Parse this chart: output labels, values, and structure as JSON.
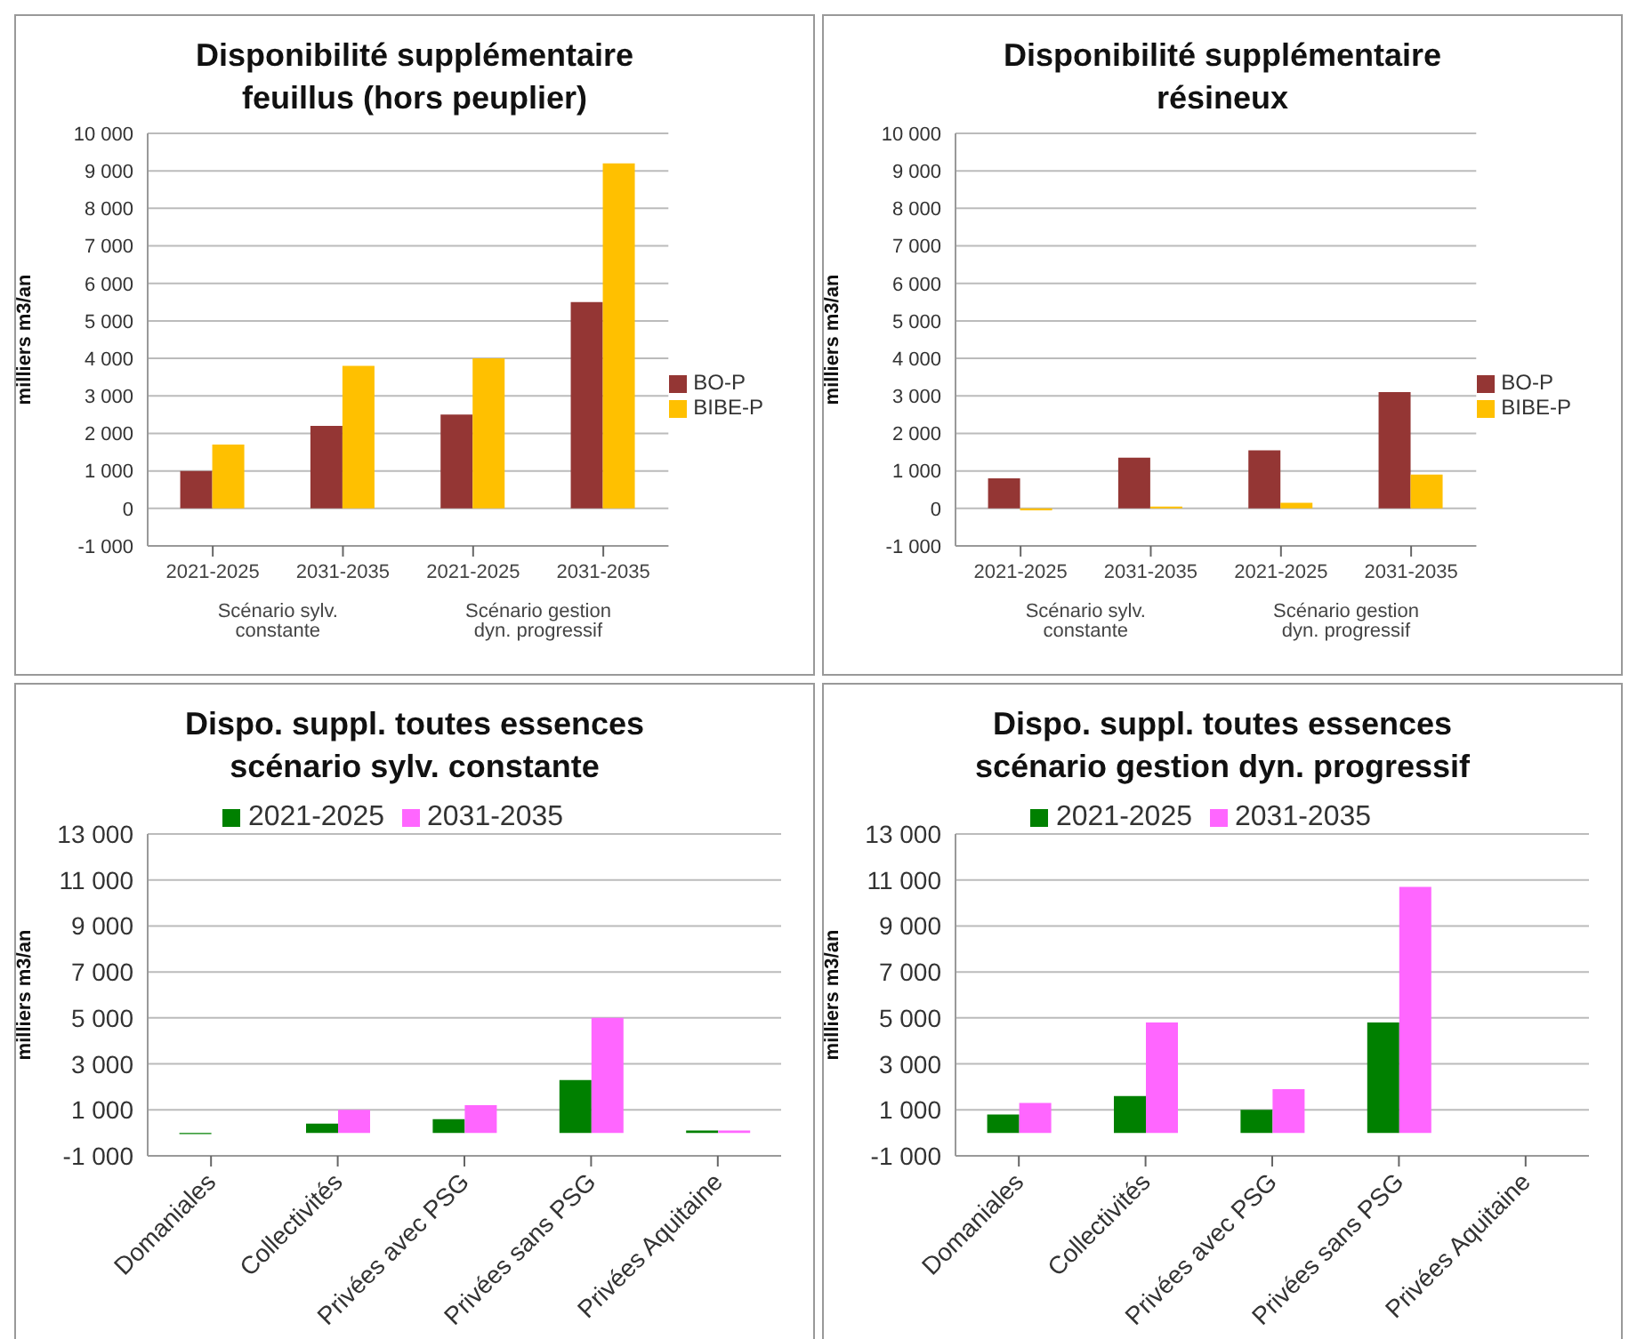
{
  "chart_data": [
    {
      "type": "bar",
      "title": "Disponibilité supplémentaire feuillus (hors peuplier)",
      "ylabel": "milliers m3/an",
      "categories": [
        "2021-2025",
        "2031-2035",
        "2021-2025",
        "2031-2035"
      ],
      "series": [
        {
          "name": "BO-P",
          "color": "#943634",
          "values": [
            1000,
            2200,
            2500,
            5500
          ]
        },
        {
          "name": "BIBE-P",
          "color": "#ffc000",
          "values": [
            1700,
            3800,
            4000,
            9200
          ]
        }
      ],
      "annotations": [
        "Scénario sylv. constante",
        "Scénario gestion dyn. progressif"
      ],
      "ylim": [
        -1000,
        10000
      ],
      "yticks": [
        {
          "value": -1000,
          "label": "-1 000"
        },
        0,
        {
          "value": 1000,
          "label": "1 000"
        },
        {
          "value": 2000,
          "label": "2 000"
        },
        {
          "value": 3000,
          "label": "3 000"
        },
        {
          "value": 4000,
          "label": "4 000"
        },
        {
          "value": 5000,
          "label": "5 000"
        },
        {
          "value": 6000,
          "label": "6 000"
        },
        {
          "value": 7000,
          "label": "7 000"
        },
        {
          "value": 8000,
          "label": "8 000"
        },
        {
          "value": 9000,
          "label": "9 000"
        },
        {
          "value": 10000,
          "label": "10 000"
        }
      ],
      "grid": "y",
      "legend": "right"
    },
    {
      "type": "bar",
      "title": "Disponibilité supplémentaire résineux",
      "ylabel": "milliers m3/an",
      "categories": [
        "2021-2025",
        "2031-2035",
        "2021-2025",
        "2031-2035"
      ],
      "series": [
        {
          "name": "BO-P",
          "color": "#943634",
          "values": [
            800,
            1350,
            1550,
            3100
          ]
        },
        {
          "name": "BIBE-P",
          "color": "#ffc000",
          "values": [
            -50,
            50,
            150,
            900
          ]
        }
      ],
      "annotations": [
        "Scénario sylv. constante",
        "Scénario gestion dyn. progressif"
      ],
      "ylim": [
        -1000,
        10000
      ],
      "yticks": [
        {
          "value": -1000,
          "label": "-1 000"
        },
        0,
        {
          "value": 1000,
          "label": "1 000"
        },
        {
          "value": 2000,
          "label": "2 000"
        },
        {
          "value": 3000,
          "label": "3 000"
        },
        {
          "value": 4000,
          "label": "4 000"
        },
        {
          "value": 5000,
          "label": "5 000"
        },
        {
          "value": 6000,
          "label": "6 000"
        },
        {
          "value": 7000,
          "label": "7 000"
        },
        {
          "value": 8000,
          "label": "8 000"
        },
        {
          "value": 9000,
          "label": "9 000"
        },
        {
          "value": 10000,
          "label": "10 000"
        }
      ],
      "grid": "y",
      "legend": "right"
    },
    {
      "type": "bar",
      "title": "Dispo. suppl. toutes essences scénario sylv. constante",
      "ylabel": "milliers m3/an",
      "categories": [
        "Domaniales",
        "Collectivités",
        "Privées avec PSG",
        "Privées sans PSG",
        "Privées Aquitaine"
      ],
      "series": [
        {
          "name": "2021-2025",
          "color": "#008000",
          "values": [
            -50,
            400,
            600,
            2300,
            100
          ]
        },
        {
          "name": "2031-2035",
          "color": "#ff66ff",
          "values": [
            0,
            1000,
            1200,
            5000,
            100
          ]
        }
      ],
      "ylim": [
        -1000,
        13000
      ],
      "yticks": [
        {
          "value": -1000,
          "label": "-1 000"
        },
        {
          "value": 1000,
          "label": "1 000"
        },
        {
          "value": 3000,
          "label": "3 000"
        },
        {
          "value": 5000,
          "label": "5 000"
        },
        {
          "value": 7000,
          "label": "7 000"
        },
        {
          "value": 9000,
          "label": "9 000"
        },
        {
          "value": 11000,
          "label": "11 000"
        },
        {
          "value": 13000,
          "label": "13 000"
        }
      ],
      "grid": "y",
      "legend": "top"
    },
    {
      "type": "bar",
      "title": "Dispo. suppl. toutes essences scénario gestion dyn. progressif",
      "ylabel": "milliers m3/an",
      "categories": [
        "Domaniales",
        "Collectivités",
        "Privées avec PSG",
        "Privées sans PSG",
        "Privées Aquitaine"
      ],
      "series": [
        {
          "name": "2021-2025",
          "color": "#008000",
          "values": [
            800,
            1600,
            1000,
            4800,
            0
          ]
        },
        {
          "name": "2031-2035",
          "color": "#ff66ff",
          "values": [
            1300,
            4800,
            1900,
            10700,
            0
          ]
        }
      ],
      "ylim": [
        -1000,
        13000
      ],
      "yticks": [
        {
          "value": -1000,
          "label": "-1 000"
        },
        {
          "value": 1000,
          "label": "1 000"
        },
        {
          "value": 3000,
          "label": "3 000"
        },
        {
          "value": 5000,
          "label": "5 000"
        },
        {
          "value": 7000,
          "label": "7 000"
        },
        {
          "value": 9000,
          "label": "9 000"
        },
        {
          "value": 11000,
          "label": "11 000"
        },
        {
          "value": 13000,
          "label": "13 000"
        }
      ],
      "grid": "y",
      "legend": "top"
    }
  ]
}
